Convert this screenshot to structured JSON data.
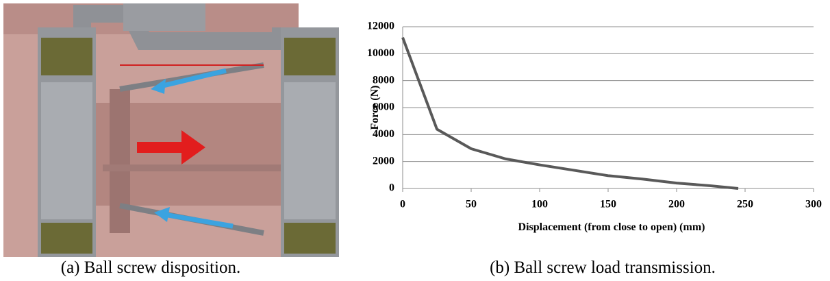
{
  "chart_data": {
    "type": "line",
    "xlabel": "Displacement (from  close to open) (mm)",
    "ylabel": "Force (N)",
    "x": [
      0,
      25,
      50,
      75,
      100,
      125,
      150,
      175,
      200,
      225,
      245
    ],
    "series": [
      {
        "color": "#595959",
        "values": [
          11200,
          4400,
          2950,
          2200,
          1750,
          1350,
          950,
          700,
          400,
          200,
          0
        ]
      }
    ],
    "xlim": [
      0,
      300
    ],
    "xticks": [
      0,
      50,
      100,
      150,
      200,
      250,
      300
    ],
    "ylim": [
      0,
      12000
    ],
    "yticks": [
      0,
      2000,
      4000,
      6000,
      8000,
      10000,
      12000
    ],
    "grid": true
  },
  "captions": [
    "(a) Ball screw disposition.",
    "(b) Ball screw load transmission."
  ]
}
